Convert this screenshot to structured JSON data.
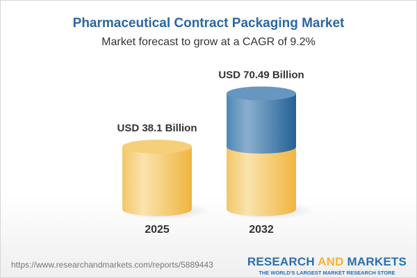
{
  "chart_data": {
    "type": "bar",
    "style": "3d-cylinder",
    "title": "Pharmaceutical Contract Packaging Market",
    "subtitle": "Market forecast to grow at a CAGR of 9.2%",
    "categories": [
      "2025",
      "2032"
    ],
    "values": [
      38.1,
      70.49
    ],
    "data_labels": [
      "USD 38.1 Billion",
      "USD 70.49 Billion"
    ],
    "unit": "USD Billion",
    "colors": {
      "base": "#f3c25a",
      "growth": "#3f7bb0",
      "title": "#2b66a4"
    }
  },
  "footer": {
    "url": "https://www.researchandmarkets.com/reports/5889443",
    "logo_research": "RESEARCH",
    "logo_and": "AND",
    "logo_markets": "MARKETS",
    "logo_tagline": "THE WORLD'S LARGEST MARKET RESEARCH STORE"
  }
}
